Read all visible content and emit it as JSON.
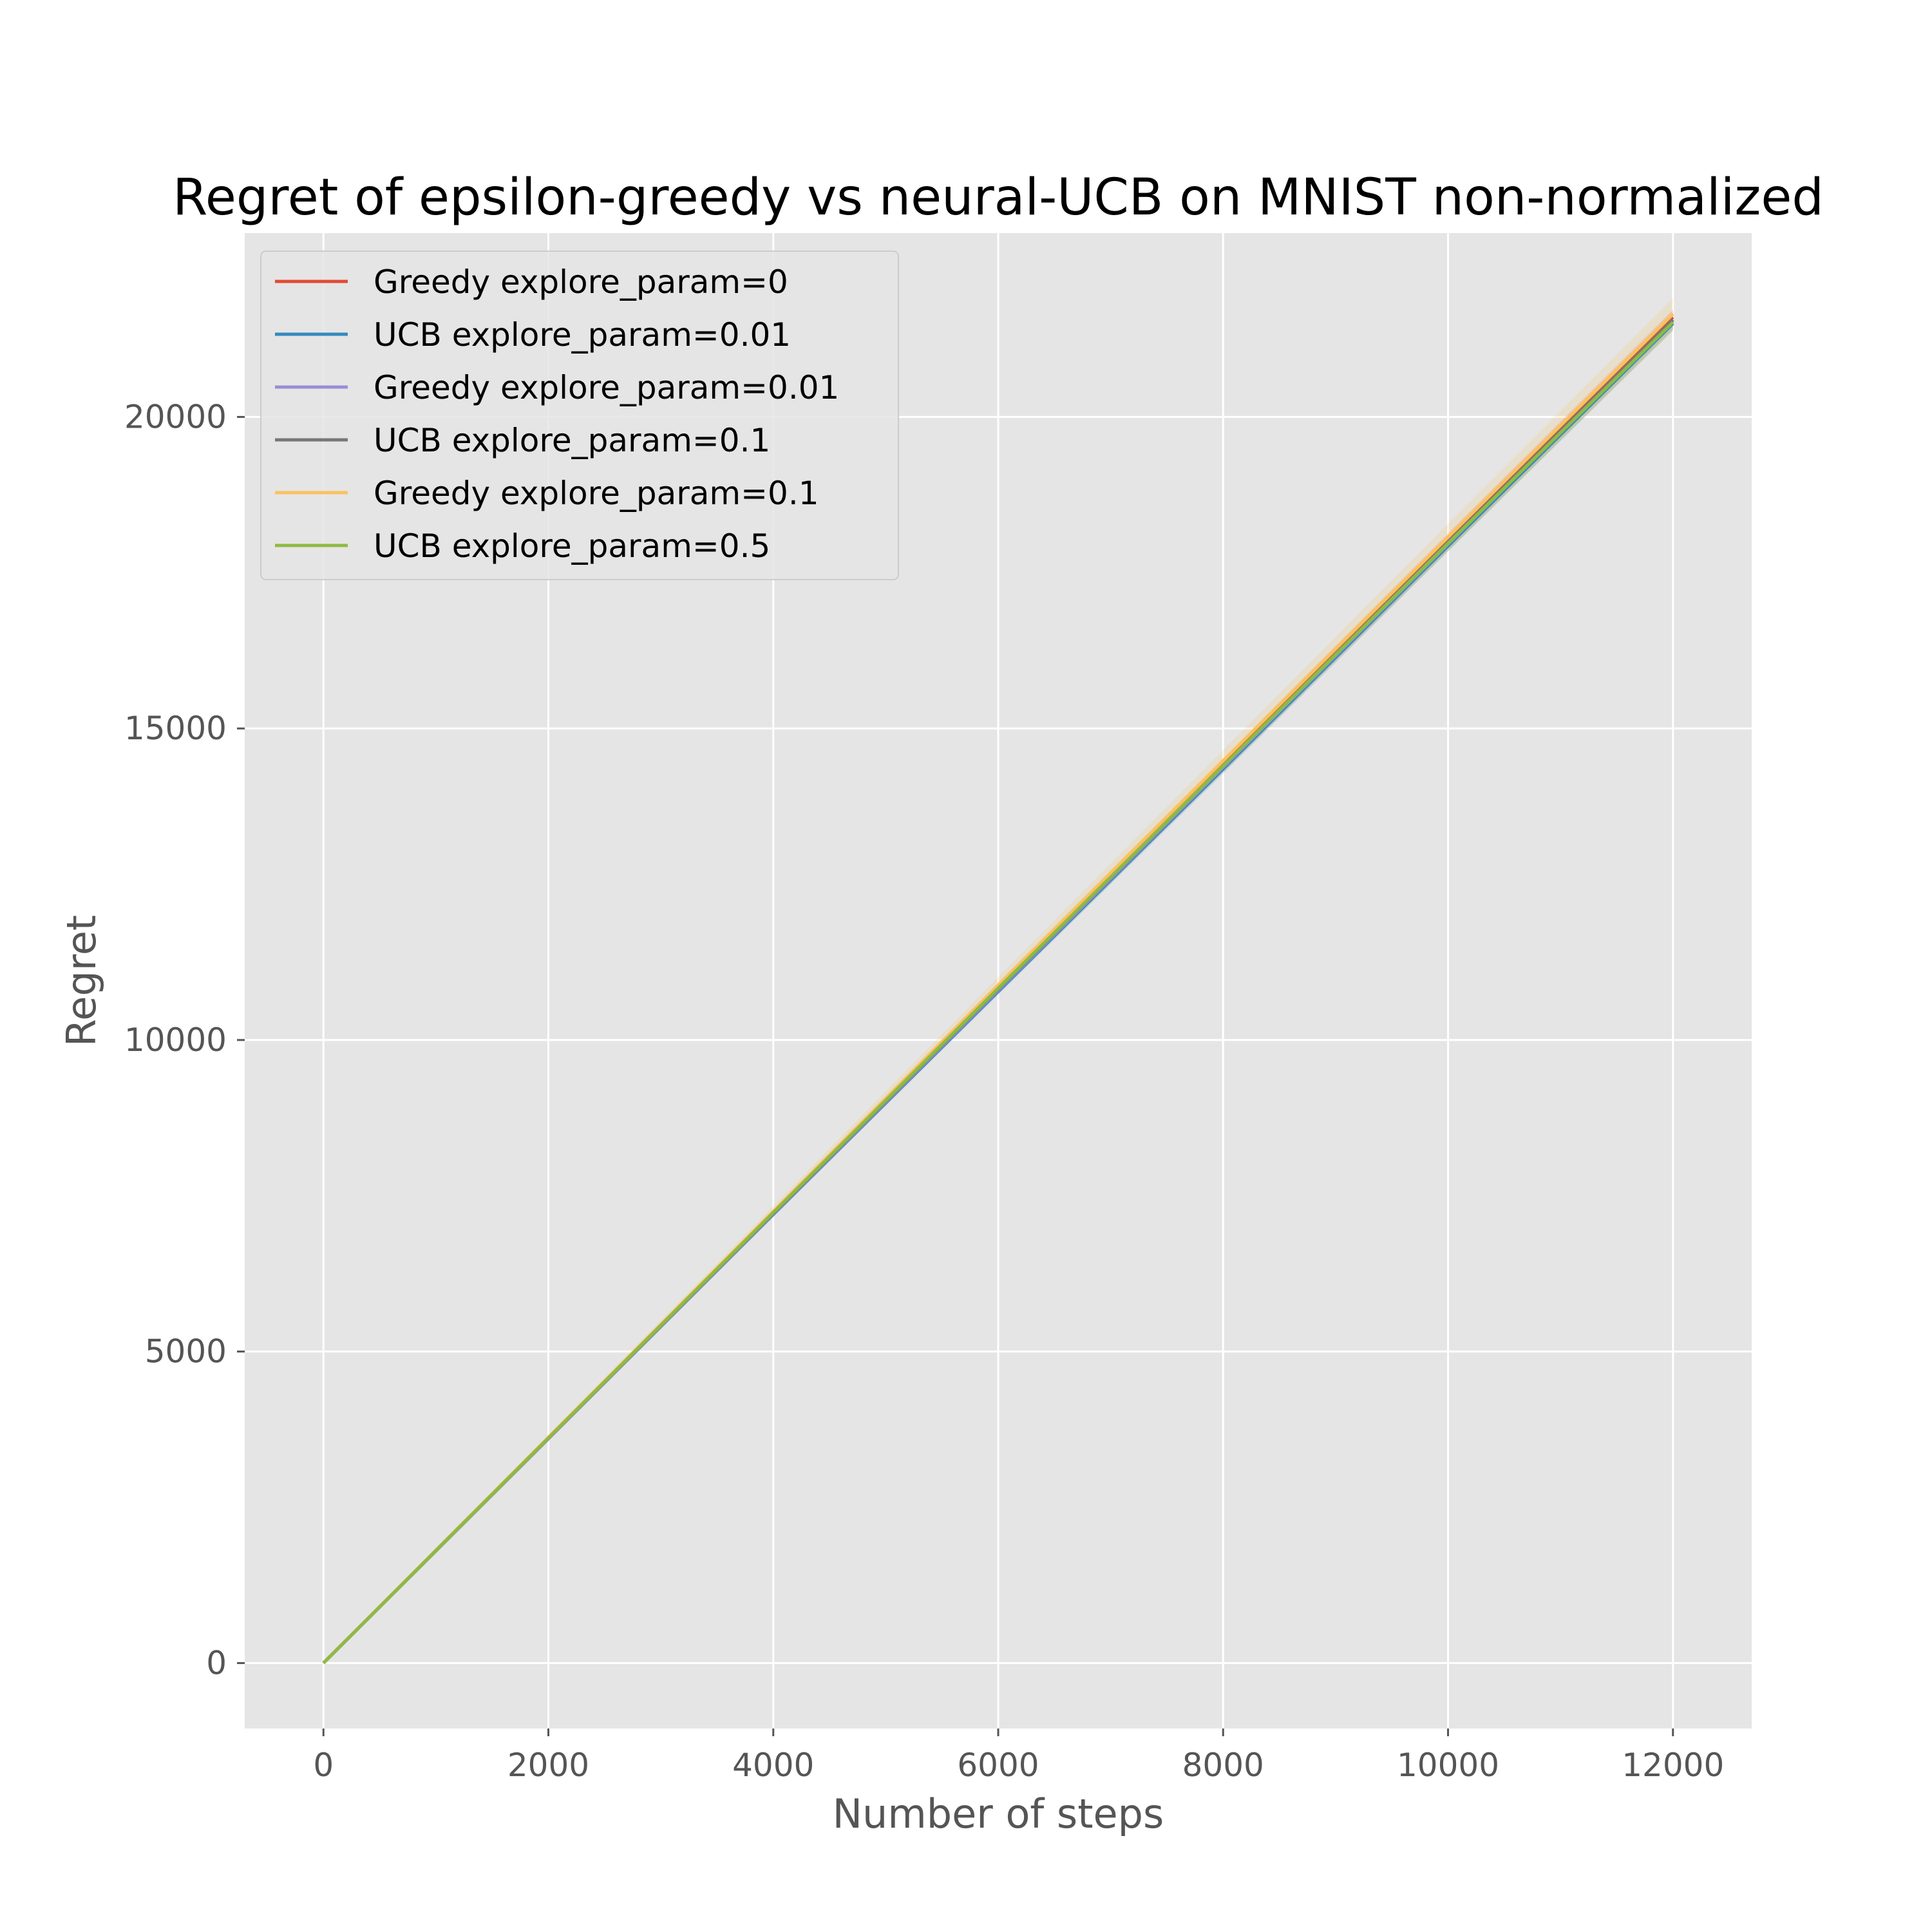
{
  "chart_data": {
    "type": "line",
    "title": "Regret of epsilon-greedy vs neural-UCB on MNIST non-normalized",
    "xlabel": "Number of steps",
    "ylabel": "Regret",
    "xlim": [
      -700,
      12700
    ],
    "ylim": [
      -1050,
      22950
    ],
    "xticks": [
      0,
      2000,
      4000,
      6000,
      8000,
      10000,
      12000
    ],
    "xtick_labels": [
      "0",
      "2000",
      "4000",
      "6000",
      "8000",
      "10000",
      "12000"
    ],
    "yticks": [
      0,
      5000,
      10000,
      15000,
      20000
    ],
    "ytick_labels": [
      "0",
      "5000",
      "10000",
      "15000",
      "20000"
    ],
    "grid": true,
    "legend_position": "top-left",
    "series": [
      {
        "name": "Greedy explore_param=0",
        "color": "#E24A33",
        "x": [
          0,
          2000,
          4000,
          6000,
          8000,
          10000,
          12000
        ],
        "y": [
          0,
          3620,
          7240,
          10860,
          14440,
          18030,
          21600
        ],
        "band": 120
      },
      {
        "name": "UCB explore_param=0.01",
        "color": "#348ABD",
        "x": [
          0,
          2000,
          4000,
          6000,
          8000,
          10000,
          12000
        ],
        "y": [
          0,
          3600,
          7200,
          10780,
          14350,
          17930,
          21500
        ],
        "band": 110
      },
      {
        "name": "Greedy explore_param=0.01",
        "color": "#988ED5",
        "x": [
          0,
          2000,
          4000,
          6000,
          8000,
          10000,
          12000
        ],
        "y": [
          0,
          3600,
          7210,
          10800,
          14380,
          17960,
          21550
        ],
        "band": 130
      },
      {
        "name": "UCB explore_param=0.1",
        "color": "#777777",
        "x": [
          0,
          2000,
          4000,
          6000,
          8000,
          10000,
          12000
        ],
        "y": [
          0,
          3610,
          7220,
          10820,
          14400,
          17990,
          21560
        ],
        "band": 100
      },
      {
        "name": "Greedy explore_param=0.1",
        "color": "#FBC15E",
        "x": [
          0,
          2000,
          4000,
          6000,
          8000,
          10000,
          12000
        ],
        "y": [
          0,
          3620,
          7250,
          10880,
          14480,
          18070,
          21650
        ],
        "band": 260
      },
      {
        "name": "UCB explore_param=0.5",
        "color": "#8EBA42",
        "x": [
          0,
          2000,
          4000,
          6000,
          8000,
          10000,
          12000
        ],
        "y": [
          0,
          3610,
          7230,
          10830,
          14400,
          17970,
          21520
        ],
        "band": 140
      }
    ]
  }
}
